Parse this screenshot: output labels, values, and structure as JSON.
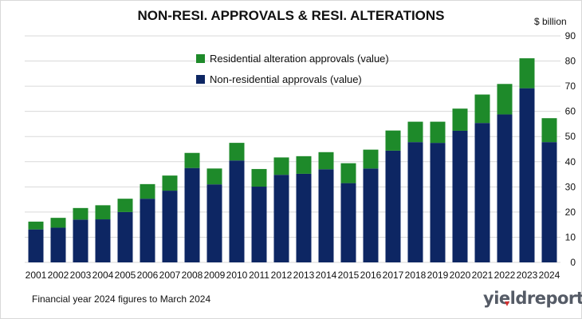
{
  "chart_data": {
    "type": "bar",
    "stacked": true,
    "title": "NON-RESI. APPROVALS & RESI. ALTERATIONS",
    "ylabel": "$ billion",
    "ylim": [
      0,
      90
    ],
    "yticks": [
      0,
      10,
      20,
      30,
      40,
      50,
      60,
      70,
      80,
      90
    ],
    "y_axis_side": "right",
    "grid": true,
    "legend_position": "top-center",
    "categories": [
      "2001",
      "2002",
      "2003",
      "2004",
      "2005",
      "2006",
      "2007",
      "2008",
      "2009",
      "2010",
      "2011",
      "2012",
      "2013",
      "2014",
      "2015",
      "2016",
      "2017",
      "2018",
      "2019",
      "2020",
      "2021",
      "2022",
      "2023",
      "2024"
    ],
    "series": [
      {
        "name": "Non-residential approvals (value)",
        "color": "#0d2663",
        "values": [
          13.1,
          13.8,
          17.0,
          17.1,
          20.0,
          25.3,
          28.5,
          37.5,
          31.0,
          40.5,
          30.1,
          34.8,
          35.2,
          37.0,
          31.5,
          37.3,
          44.4,
          47.8,
          47.5,
          52.3,
          55.4,
          58.8,
          69.2,
          47.8
        ]
      },
      {
        "name": "Residential alteration approvals (value)",
        "color": "#1e8a2a",
        "values": [
          3.1,
          3.9,
          4.6,
          5.6,
          5.3,
          5.8,
          6.0,
          6.0,
          6.3,
          7.0,
          7.0,
          6.9,
          7.0,
          6.8,
          7.9,
          7.5,
          8.0,
          8.1,
          8.4,
          8.8,
          11.3,
          12.1,
          11.9,
          9.5
        ]
      }
    ]
  },
  "legend": {
    "items": [
      {
        "label": "Residential alteration approvals (value)",
        "color": "#1e8a2a"
      },
      {
        "label": "Non-residential approvals (value)",
        "color": "#0d2663"
      }
    ]
  },
  "footnote": "Financial year 2024 figures to March 2024",
  "logo": {
    "text": "yieldreport"
  }
}
